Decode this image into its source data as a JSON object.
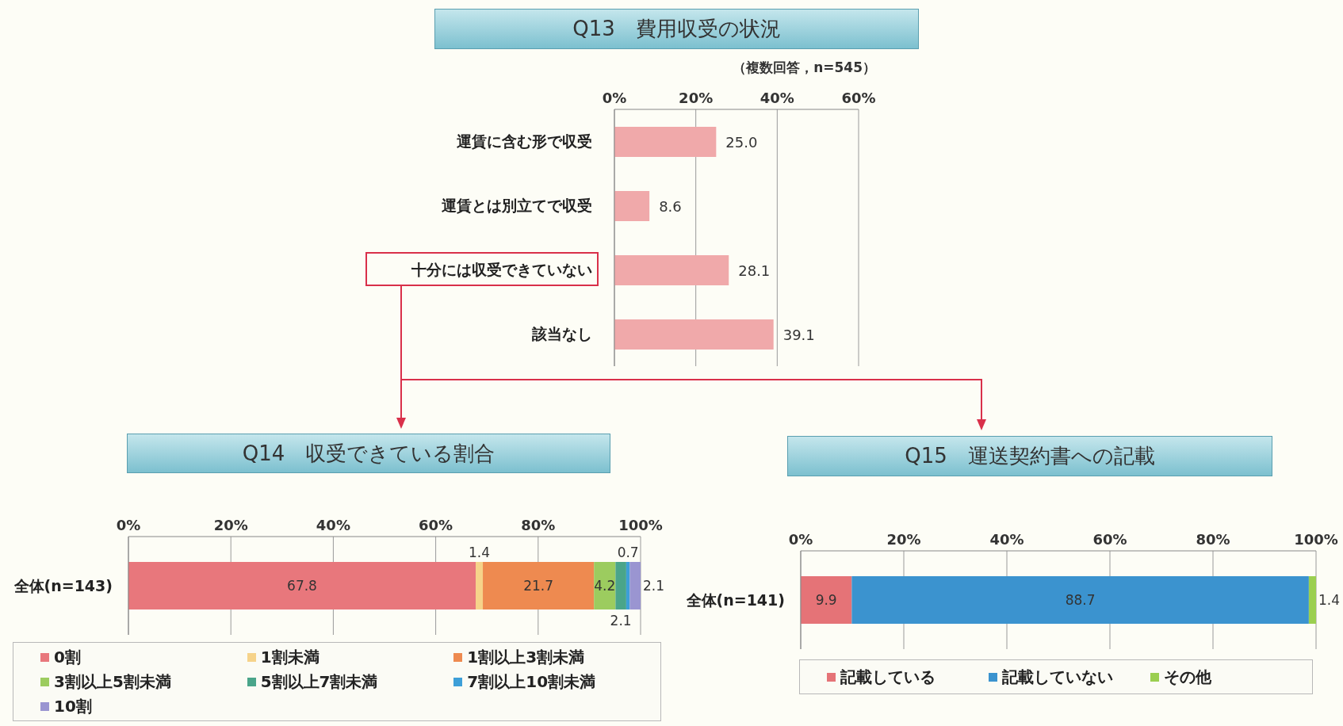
{
  "chart_data": [
    {
      "type": "bar",
      "orientation": "horizontal",
      "title": "Q13　費用収受の状況",
      "subtitle": "（複数回答，n=545）",
      "categories": [
        "運賃に含む形で収受",
        "運賃とは別立てで収受",
        "十分には収受できていない",
        "該当なし"
      ],
      "values": [
        25.0,
        8.6,
        28.1,
        39.1
      ],
      "value_labels": [
        "25.0",
        "8.6",
        "28.1",
        "39.1"
      ],
      "color": "#f0a9aa",
      "xlim": [
        0,
        60
      ],
      "xticks": [
        {
          "value": 0,
          "label": "0%"
        },
        {
          "value": 20,
          "label": "20%"
        },
        {
          "value": 40,
          "label": "40%"
        },
        {
          "value": 60,
          "label": "60%"
        }
      ],
      "grid": "x"
    },
    {
      "type": "bar",
      "orientation": "horizontal",
      "stacked": true,
      "title": "Q14　収受できている割合",
      "categories": [
        "全体(n=143)"
      ],
      "series": [
        {
          "name": "0割",
          "color": "#e8777c",
          "values": [
            67.8
          ]
        },
        {
          "name": "1割未満",
          "color": "#f6d38a",
          "values": [
            1.4
          ]
        },
        {
          "name": "1割以上3割未満",
          "color": "#ee8a50",
          "values": [
            21.7
          ]
        },
        {
          "name": "3割以上5割未満",
          "color": "#9ccc5f",
          "values": [
            4.2
          ]
        },
        {
          "name": "5割以上7割未満",
          "color": "#4aa58a",
          "values": [
            2.1
          ]
        },
        {
          "name": "7割以上10割未満",
          "color": "#3d9fd8",
          "values": [
            0.7
          ]
        },
        {
          "name": "10割",
          "color": "#9a95d1",
          "values": [
            2.1
          ]
        }
      ],
      "data_labels": true,
      "xlim": [
        0,
        100
      ],
      "xticks": [
        {
          "value": 0,
          "label": "0%"
        },
        {
          "value": 20,
          "label": "20%"
        },
        {
          "value": 40,
          "label": "40%"
        },
        {
          "value": 60,
          "label": "60%"
        },
        {
          "value": 80,
          "label": "80%"
        },
        {
          "value": 100,
          "label": "100%"
        }
      ],
      "grid": "x",
      "legend": "bottom"
    },
    {
      "type": "bar",
      "orientation": "horizontal",
      "stacked": true,
      "title": "Q15　運送契約書への記載",
      "categories": [
        "全体(n=141)"
      ],
      "series": [
        {
          "name": "記載している",
          "color": "#e57377",
          "values": [
            9.9
          ]
        },
        {
          "name": "記載していない",
          "color": "#3b93cf",
          "values": [
            88.7
          ]
        },
        {
          "name": "その他",
          "color": "#9bcf50",
          "values": [
            1.4
          ]
        }
      ],
      "data_labels": true,
      "xlim": [
        0,
        100
      ],
      "xticks": [
        {
          "value": 0,
          "label": "0%"
        },
        {
          "value": 20,
          "label": "20%"
        },
        {
          "value": 40,
          "label": "40%"
        },
        {
          "value": 60,
          "label": "60%"
        },
        {
          "value": 80,
          "label": "80%"
        },
        {
          "value": 100,
          "label": "100%"
        }
      ],
      "grid": "x",
      "legend": "bottom"
    }
  ]
}
